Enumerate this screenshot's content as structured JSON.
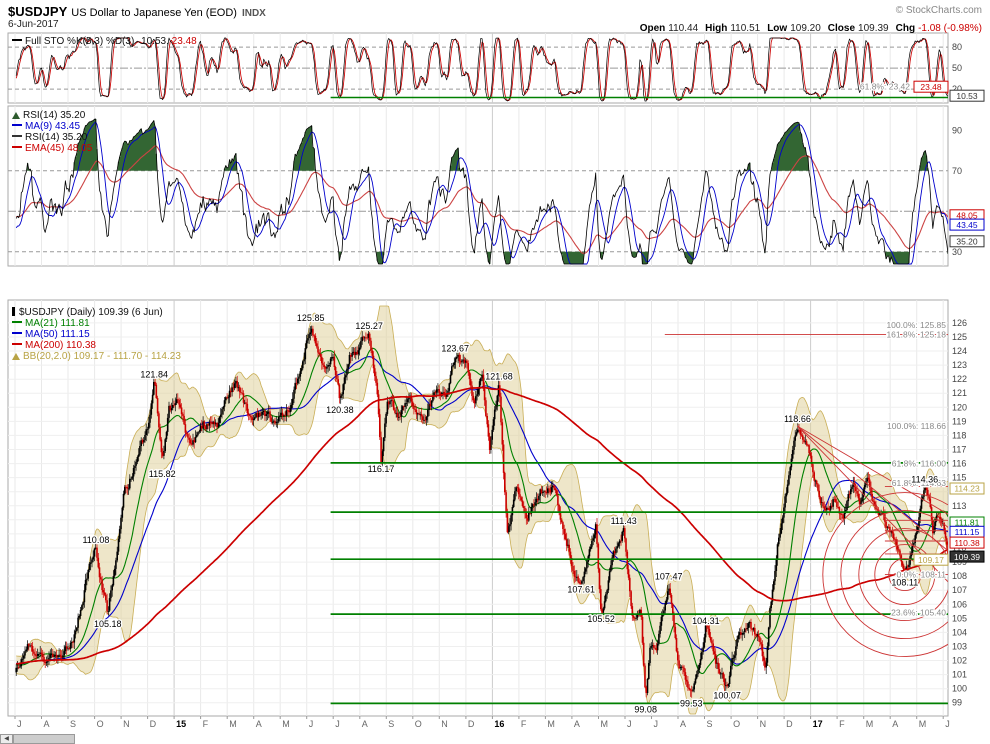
{
  "header": {
    "symbol": "$USDJPY",
    "description": "US Dollar to Japanese Yen (EOD)",
    "exchange": "INDX",
    "copyright": "© StockCharts.com",
    "date": "6-Jun-2017",
    "quote": {
      "open_label": "Open",
      "open": "110.44",
      "high_label": "High",
      "high": "110.51",
      "low_label": "Low",
      "low": "109.20",
      "close_label": "Close",
      "close": "109.39",
      "chg_label": "Chg",
      "chg": "-1.08 (-0.98%)"
    }
  },
  "legends": {
    "sto": {
      "name": "Full STO %K(5,3) %D(3)",
      "k": "10.53,",
      "d": "23.48"
    },
    "rsi": {
      "rows": [
        {
          "text": "RSI(14) 35.20"
        },
        {
          "text": "MA(9) 43.45"
        },
        {
          "text": "RSI(14) 35.20"
        },
        {
          "text": "EMA(45) 48.05"
        }
      ]
    },
    "main": {
      "title": "$USDJPY (Daily) 109.39 (6 Jun)",
      "rows": [
        {
          "text": "MA(21) 111.81"
        },
        {
          "text": "MA(50) 111.15"
        },
        {
          "text": "MA(200) 110.38"
        },
        {
          "text": "BB(20,2.0) 109.17 - 111.70 - 114.23"
        }
      ]
    }
  },
  "scrollbar": {
    "left_arrow": "◀"
  },
  "chart_data": {
    "type": "candlestick",
    "symbol": "$USDJPY",
    "timeframe": "Daily",
    "title": "US Dollar to Japanese Yen (EOD) INDX",
    "months_total": 35.18,
    "x_labels": [
      "J",
      "A",
      "S",
      "O",
      "N",
      "D",
      "15",
      "F",
      "M",
      "A",
      "M",
      "J",
      "J",
      "A",
      "S",
      "O",
      "N",
      "D",
      "16",
      "F",
      "M",
      "A",
      "M",
      "J",
      "J",
      "A",
      "S",
      "O",
      "N",
      "D",
      "17",
      "F",
      "M",
      "A",
      "M",
      "J"
    ],
    "price_axis": {
      "min": 99,
      "max": 126,
      "step": 1
    },
    "sto_axis": [
      80,
      50,
      20
    ],
    "rsi_axis": [
      90,
      70,
      30
    ],
    "last_candle": {
      "open": 110.44,
      "high": 110.51,
      "low": 109.2,
      "close": 109.39
    },
    "indicators": {
      "sto": {
        "k": 10.53,
        "d": 23.48
      },
      "rsi": {
        "rsi": 35.2,
        "ma9": 43.45,
        "ema45": 48.05
      },
      "ma21": 111.81,
      "ma50": 111.15,
      "ma200": 110.38,
      "bb": {
        "lower": 109.17,
        "mid": 111.7,
        "upper": 114.23
      }
    },
    "anchors": [
      [
        -10,
        97.8
      ],
      [
        -8.5,
        101.5
      ],
      [
        -7,
        102.8
      ],
      [
        -5.5,
        101.2
      ],
      [
        -4,
        102.4
      ],
      [
        -2.5,
        101.6
      ],
      [
        -1,
        102
      ],
      [
        -0.3,
        101.6
      ],
      [
        0,
        101.3
      ],
      [
        0.5,
        102.9
      ],
      [
        1.2,
        102
      ],
      [
        1.8,
        102.4
      ],
      [
        2.3,
        104.2
      ],
      [
        2.9,
        109.6
      ],
      [
        3.05,
        110.08
      ],
      [
        3.3,
        107.2
      ],
      [
        3.5,
        105.18
      ],
      [
        3.8,
        109.2
      ],
      [
        4.1,
        113.6
      ],
      [
        4.6,
        116.4
      ],
      [
        5,
        118.6
      ],
      [
        5.25,
        121.84
      ],
      [
        5.55,
        115.82
      ],
      [
        5.8,
        119.6
      ],
      [
        6.1,
        120.5
      ],
      [
        6.6,
        117
      ],
      [
        7.1,
        118.8
      ],
      [
        7.6,
        118.6
      ],
      [
        8.3,
        122
      ],
      [
        8.8,
        119.3
      ],
      [
        9.3,
        119.6
      ],
      [
        9.9,
        118.9
      ],
      [
        10.4,
        120.1
      ],
      [
        10.8,
        123.1
      ],
      [
        11.15,
        125.85
      ],
      [
        11.6,
        122.7
      ],
      [
        12,
        123.4
      ],
      [
        12.25,
        120.38
      ],
      [
        12.6,
        123.6
      ],
      [
        13,
        124.4
      ],
      [
        13.35,
        125.27
      ],
      [
        13.65,
        121.3
      ],
      [
        13.8,
        116.17
      ],
      [
        14.05,
        120.9
      ],
      [
        14.4,
        119.3
      ],
      [
        14.9,
        120.4
      ],
      [
        15.4,
        118.9
      ],
      [
        15.9,
        121.1
      ],
      [
        16.3,
        120.4
      ],
      [
        16.6,
        123.67
      ],
      [
        17,
        122.9
      ],
      [
        17.3,
        120.4
      ],
      [
        17.6,
        122.4
      ],
      [
        17.9,
        117.1
      ],
      [
        18.05,
        118.9
      ],
      [
        18.25,
        121.68
      ],
      [
        18.55,
        110.98
      ],
      [
        18.9,
        114.2
      ],
      [
        19.3,
        112.2
      ],
      [
        19.8,
        113.9
      ],
      [
        20.3,
        114.5
      ],
      [
        20.7,
        111.4
      ],
      [
        21.1,
        108.3
      ],
      [
        21.35,
        107.61
      ],
      [
        21.7,
        109.7
      ],
      [
        21.9,
        111.5
      ],
      [
        22.1,
        105.52
      ],
      [
        22.5,
        109.2
      ],
      [
        22.95,
        111.43
      ],
      [
        23.3,
        104.6
      ],
      [
        23.6,
        105.9
      ],
      [
        23.78,
        99.08
      ],
      [
        23.95,
        102.6
      ],
      [
        24.2,
        103.1
      ],
      [
        24.65,
        107.47
      ],
      [
        25,
        101.9
      ],
      [
        25.5,
        99.53
      ],
      [
        25.9,
        102.3
      ],
      [
        26.05,
        104.31
      ],
      [
        26.4,
        101.6
      ],
      [
        26.85,
        100.07
      ],
      [
        27.3,
        103.9
      ],
      [
        27.7,
        104.6
      ],
      [
        28.1,
        103.3
      ],
      [
        28.3,
        101.2
      ],
      [
        28.45,
        105.6
      ],
      [
        28.8,
        110.9
      ],
      [
        29.1,
        114
      ],
      [
        29.5,
        118.66
      ],
      [
        29.9,
        117.3
      ],
      [
        30.15,
        115.2
      ],
      [
        30.5,
        112.6
      ],
      [
        30.9,
        113.6
      ],
      [
        31.2,
        111.7
      ],
      [
        31.6,
        114.9
      ],
      [
        31.9,
        113.3
      ],
      [
        32.15,
        115.4
      ],
      [
        32.5,
        112.6
      ],
      [
        32.9,
        111.2
      ],
      [
        33.2,
        110.6
      ],
      [
        33.55,
        108.11
      ],
      [
        33.8,
        109.7
      ],
      [
        34,
        111.4
      ],
      [
        34.3,
        114.36
      ],
      [
        34.45,
        113.4
      ],
      [
        34.6,
        110.9
      ],
      [
        34.8,
        112.1
      ],
      [
        35,
        111.2
      ],
      [
        35.18,
        109.8
      ]
    ],
    "annotations": [
      {
        "m": 3.05,
        "p": 110.08,
        "t": "110.08",
        "pos": "a"
      },
      {
        "m": 3.5,
        "p": 105.18,
        "t": "105.18",
        "pos": "b"
      },
      {
        "m": 5.25,
        "p": 121.84,
        "t": "121.84",
        "pos": "a"
      },
      {
        "m": 5.55,
        "p": 115.82,
        "t": "115.82",
        "pos": "b"
      },
      {
        "m": 11.15,
        "p": 125.85,
        "t": "125.85",
        "pos": "a"
      },
      {
        "m": 12.25,
        "p": 120.38,
        "t": "120.38",
        "pos": "b"
      },
      {
        "m": 13.35,
        "p": 125.27,
        "t": "125.27",
        "pos": "a"
      },
      {
        "m": 13.8,
        "p": 116.17,
        "t": "116.17",
        "pos": "b"
      },
      {
        "m": 16.6,
        "p": 123.67,
        "t": "123.67",
        "pos": "a"
      },
      {
        "m": 18.25,
        "p": 121.68,
        "t": "121.68",
        "pos": "a"
      },
      {
        "m": 21.35,
        "p": 107.61,
        "t": "107.61",
        "pos": "b"
      },
      {
        "m": 22.1,
        "p": 105.52,
        "t": "105.52",
        "pos": "b"
      },
      {
        "m": 22.95,
        "p": 111.43,
        "t": "111.43",
        "pos": "a"
      },
      {
        "m": 23.78,
        "p": 99.08,
        "t": "99.08",
        "pos": "b"
      },
      {
        "m": 24.65,
        "p": 107.47,
        "t": "107.47",
        "pos": "a"
      },
      {
        "m": 25.5,
        "p": 99.53,
        "t": "99.53",
        "pos": "b"
      },
      {
        "m": 26.05,
        "p": 104.31,
        "t": "104.31",
        "pos": "a"
      },
      {
        "m": 26.85,
        "p": 100.07,
        "t": "100.07",
        "pos": "b"
      },
      {
        "m": 29.5,
        "p": 118.66,
        "t": "118.66",
        "pos": "a"
      },
      {
        "m": 33.55,
        "p": 108.11,
        "t": "108.11",
        "pos": "b"
      },
      {
        "m": 34.3,
        "p": 114.36,
        "t": "114.36",
        "pos": "a"
      }
    ],
    "fib_labels": [
      {
        "t": "100.0%: 125.85",
        "p": 125.85
      },
      {
        "t": "161.8%: 125.18",
        "p": 125.18,
        "line_from_m": 24.5
      },
      {
        "t": "100.0%: 118.66",
        "p": 118.66
      },
      {
        "t": "61.8%: 116.00",
        "p": 116.0
      },
      {
        "t": "61.8%: 114.63",
        "p": 114.63
      },
      {
        "t": "0.0%: 108.11",
        "p": 108.11
      },
      {
        "t": "23.6%: 105.40",
        "p": 105.4
      }
    ],
    "sto_fib_label": {
      "t": "61.8%: 23.42",
      "value": 23.4
    },
    "green_lines": {
      "main": [
        {
          "price": 116.05,
          "from_m": 11.9
        },
        {
          "price": 112.55,
          "from_m": 11.9
        },
        {
          "price": 109.2,
          "from_m": 11.9
        },
        {
          "price": 105.3,
          "from_m": 11.9
        },
        {
          "price": 98.95,
          "from_m": 11.9
        }
      ],
      "sto": {
        "value": 8,
        "from_m": 11.9
      }
    },
    "red_levels": {
      "from_m": 32.8,
      "prices": [
        108.11,
        109.58,
        110.5,
        111.23,
        111.97,
        114.36
      ]
    },
    "red_rays": [
      {
        "m1": 29.5,
        "p1": 118.66,
        "p2": 112.4
      },
      {
        "m1": 29.5,
        "p1": 118.66,
        "p2": 109.8
      },
      {
        "m1": 29.5,
        "p1": 118.66,
        "p2": 107.6
      }
    ],
    "red_arcs": {
      "center_m": 33.55,
      "center_price": 108.11,
      "radii": [
        16,
        30,
        46,
        64,
        82
      ]
    },
    "axis_boxes": {
      "sto": [
        {
          "text": "23.48",
          "color": "#cc0000",
          "value": 23.48,
          "shift": true
        },
        {
          "text": "10.53",
          "color": "#333333",
          "value": 10.53
        }
      ],
      "rsi": [
        {
          "text": "48.05",
          "color": "#cc0000",
          "value": 48.05
        },
        {
          "text": "43.45",
          "color": "#0000cc",
          "value": 43.45
        },
        {
          "text": "35.20",
          "color": "#333333",
          "value": 35.2
        }
      ],
      "main": [
        {
          "text": "114.23",
          "color": "#b8a345",
          "value": 114.23
        },
        {
          "text": "111.81",
          "color": "#008000",
          "value": 111.81
        },
        {
          "text": "111.15",
          "color": "#0000cc",
          "value": 111.15
        },
        {
          "text": "110.38",
          "color": "#cc0000",
          "value": 110.38
        },
        {
          "text": "109.17",
          "color": "#b8a345",
          "value": 109.17,
          "shift": true
        },
        {
          "text": "109.39",
          "color": "#000000",
          "value": 109.39,
          "inverse": true
        }
      ]
    },
    "colors": {
      "up": "#000000",
      "down": "#cc0000",
      "ma21": "#008000",
      "ma50": "#0000cc",
      "ma200": "#cc0000",
      "bb_edge": "#c9ae56",
      "bb_fill": "rgba(222,206,148,0.5)",
      "green_line": "#008000",
      "annotation_red": "#cc3333",
      "sto_k": "#000000",
      "sto_d": "#cc0000",
      "rsi": "#000000",
      "rsi_ma": "#0000cc",
      "rsi_ema": "#cc4444",
      "rsi_fill": "#336633",
      "grid": "#e9e9e9",
      "grid_year": "#cccccc",
      "axis_text": "#444444",
      "fib_text": "#8a8a8a"
    }
  }
}
